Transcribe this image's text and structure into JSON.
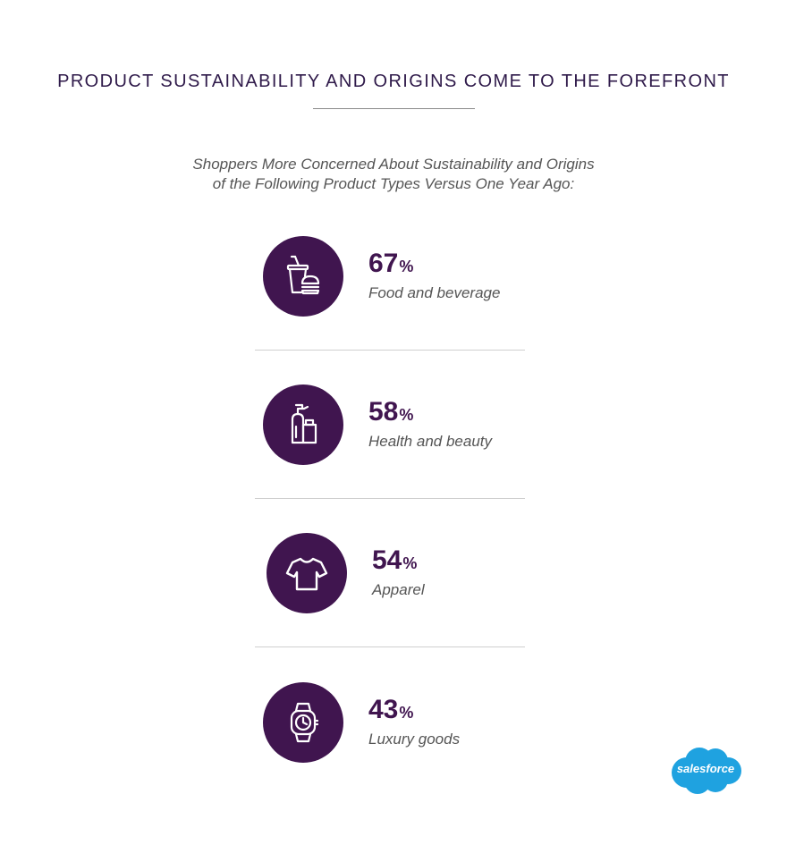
{
  "header": {
    "title": "PRODUCT SUSTAINABILITY AND ORIGINS COME TO THE FOREFRONT",
    "subtitle_line1": "Shoppers More Concerned About Sustainability and Origins",
    "subtitle_line2": "of the Following Product Types Versus One Year Ago:"
  },
  "colors": {
    "accent": "#40154f",
    "title": "#2f1a4a",
    "text": "#555555",
    "logo": "#1fa2e0"
  },
  "chart_data": {
    "type": "table",
    "title": "Shoppers More Concerned About Sustainability and Origins of the Following Product Types Versus One Year Ago:",
    "unit": "%",
    "categories": [
      "Food and beverage",
      "Health and beauty",
      "Apparel",
      "Luxury goods"
    ],
    "values": [
      67,
      58,
      54,
      43
    ],
    "icons": [
      "food-beverage-icon",
      "health-beauty-icon",
      "apparel-icon",
      "luxury-watch-icon"
    ]
  },
  "stats": [
    {
      "value": "67",
      "unit": "%",
      "label": "Food and beverage",
      "icon": "food-beverage-icon"
    },
    {
      "value": "58",
      "unit": "%",
      "label": "Health and beauty",
      "icon": "health-beauty-icon"
    },
    {
      "value": "54",
      "unit": "%",
      "label": "Apparel",
      "icon": "apparel-icon"
    },
    {
      "value": "43",
      "unit": "%",
      "label": "Luxury goods",
      "icon": "luxury-watch-icon"
    }
  ],
  "logo": {
    "text": "salesforce"
  }
}
